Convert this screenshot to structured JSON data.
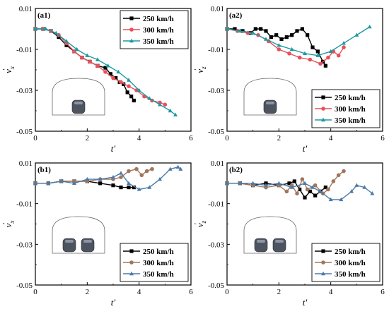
{
  "chart_data": [
    {
      "type": "line",
      "panel_label": "(a1)",
      "xlabel": "t'",
      "ylabel": "v'x",
      "ylabel_main": "v",
      "ylabel_sub": "x",
      "xlim": [
        0,
        6
      ],
      "ylim": [
        -0.05,
        0.01
      ],
      "x_ticks": [
        "0",
        "2",
        "4",
        "6"
      ],
      "y_ticks": [
        "0.01",
        "-0.01",
        "-0.03",
        "-0.05"
      ],
      "legend_position": "top-right",
      "inset": {
        "trains": 1
      },
      "series": [
        {
          "name": "250 km/h",
          "color": "#000000",
          "marker": "square",
          "x": [
            0,
            0.3,
            0.6,
            0.9,
            1.2,
            1.5,
            1.8,
            2.1,
            2.4,
            2.7,
            2.9,
            3.1,
            3.25,
            3.4,
            3.55,
            3.7,
            3.8
          ],
          "y": [
            0.0,
            0.0,
            -0.001,
            -0.004,
            -0.008,
            -0.011,
            -0.014,
            -0.016,
            -0.018,
            -0.019,
            -0.022,
            -0.024,
            -0.026,
            -0.027,
            -0.031,
            -0.033,
            -0.035
          ]
        },
        {
          "name": "300 km/h",
          "color": "#e8505b",
          "marker": "circle",
          "x": [
            0,
            0.3,
            0.6,
            0.9,
            1.2,
            1.5,
            1.8,
            2.1,
            2.4,
            2.7,
            3.0,
            3.3,
            3.6,
            3.9,
            4.2,
            4.5,
            4.8,
            5.0
          ],
          "y": [
            0.0,
            0.0,
            -0.001,
            -0.003,
            -0.007,
            -0.011,
            -0.014,
            -0.016,
            -0.018,
            -0.021,
            -0.024,
            -0.026,
            -0.028,
            -0.03,
            -0.033,
            -0.035,
            -0.036,
            -0.037
          ]
        },
        {
          "name": "350 km/h",
          "color": "#1a9aa0",
          "marker": "triangle",
          "x": [
            0,
            0.4,
            0.8,
            1.2,
            1.6,
            2.0,
            2.4,
            2.8,
            3.2,
            3.6,
            4.0,
            4.4,
            4.8,
            5.2,
            5.4
          ],
          "y": [
            0.0,
            0.0,
            -0.002,
            -0.006,
            -0.01,
            -0.013,
            -0.015,
            -0.018,
            -0.021,
            -0.025,
            -0.03,
            -0.034,
            -0.037,
            -0.04,
            -0.042
          ]
        }
      ]
    },
    {
      "type": "line",
      "panel_label": "(a2)",
      "xlabel": "t'",
      "ylabel": "v'z",
      "ylabel_main": "v",
      "ylabel_sub": "z",
      "xlim": [
        0,
        6
      ],
      "ylim": [
        -0.05,
        0.01
      ],
      "x_ticks": [
        "0",
        "2",
        "4",
        "6"
      ],
      "y_ticks": [
        "0.01",
        "-0.01",
        "-0.03",
        "-0.05"
      ],
      "legend_position": "bottom-right",
      "inset": {
        "trains": 1
      },
      "series": [
        {
          "name": "250 km/h",
          "color": "#000000",
          "marker": "square",
          "x": [
            0,
            0.3,
            0.6,
            0.9,
            1.1,
            1.3,
            1.5,
            1.7,
            1.9,
            2.1,
            2.3,
            2.5,
            2.7,
            2.9,
            3.1,
            3.3,
            3.5,
            3.7,
            3.8
          ],
          "y": [
            0.0,
            0.0,
            -0.001,
            -0.002,
            0.0,
            0.0,
            -0.001,
            -0.004,
            -0.003,
            -0.005,
            -0.004,
            -0.003,
            -0.001,
            0.0,
            -0.003,
            -0.009,
            -0.011,
            -0.016,
            -0.018
          ]
        },
        {
          "name": "300 km/h",
          "color": "#e8505b",
          "marker": "circle",
          "x": [
            0,
            0.4,
            0.8,
            1.2,
            1.6,
            2.0,
            2.4,
            2.8,
            3.2,
            3.6,
            3.9,
            4.1,
            4.3,
            4.5
          ],
          "y": [
            0.0,
            -0.001,
            -0.002,
            -0.003,
            -0.006,
            -0.01,
            -0.012,
            -0.014,
            -0.015,
            -0.017,
            -0.014,
            -0.011,
            -0.013,
            -0.009
          ]
        },
        {
          "name": "350 km/h",
          "color": "#1a9aa0",
          "marker": "triangle",
          "x": [
            0,
            0.5,
            1.0,
            1.5,
            2.0,
            2.5,
            3.0,
            3.5,
            4.0,
            4.5,
            5.0,
            5.5
          ],
          "y": [
            0.0,
            -0.001,
            -0.002,
            -0.005,
            -0.008,
            -0.01,
            -0.012,
            -0.013,
            -0.011,
            -0.007,
            -0.003,
            0.001
          ]
        }
      ]
    },
    {
      "type": "line",
      "panel_label": "(b1)",
      "xlabel": "t'",
      "ylabel": "v'x",
      "ylabel_main": "v",
      "ylabel_sub": "x",
      "xlim": [
        0,
        6
      ],
      "ylim": [
        -0.05,
        0.01
      ],
      "x_ticks": [
        "0",
        "2",
        "4",
        "6"
      ],
      "y_ticks": [
        "0.01",
        "-0.01",
        "-0.03",
        "-0.05"
      ],
      "legend_position": "bottom-right",
      "inset": {
        "trains": 2
      },
      "series": [
        {
          "name": "250 km/h",
          "color": "#000000",
          "marker": "square",
          "x": [
            0,
            0.5,
            1.0,
            1.5,
            2.0,
            2.5,
            3.0,
            3.3,
            3.6,
            3.8
          ],
          "y": [
            0.0,
            0.0,
            0.001,
            0.001,
            0.001,
            0.0,
            -0.001,
            -0.002,
            -0.002,
            -0.002
          ]
        },
        {
          "name": "300 km/h",
          "color": "#a0765e",
          "marker": "circle",
          "x": [
            0,
            0.5,
            1.0,
            1.5,
            2.0,
            2.5,
            3.0,
            3.3,
            3.6,
            3.9,
            4.1,
            4.3,
            4.5
          ],
          "y": [
            0.0,
            0.0,
            0.001,
            0.001,
            0.001,
            0.002,
            0.002,
            0.003,
            0.006,
            0.007,
            0.004,
            0.006,
            0.007
          ]
        },
        {
          "name": "350 km/h",
          "color": "#4a7aa8",
          "marker": "triangle",
          "x": [
            0,
            0.5,
            1.0,
            1.5,
            2.0,
            2.5,
            3.0,
            3.3,
            3.6,
            4.0,
            4.4,
            4.8,
            5.2,
            5.5,
            5.6
          ],
          "y": [
            0.0,
            0.0,
            0.001,
            0.0,
            0.002,
            0.002,
            0.003,
            0.005,
            0.0,
            -0.003,
            -0.002,
            0.002,
            0.007,
            0.008,
            0.007
          ]
        }
      ]
    },
    {
      "type": "line",
      "panel_label": "(b2)",
      "xlabel": "t'",
      "ylabel": "v'z",
      "ylabel_main": "v",
      "ylabel_sub": "z",
      "xlim": [
        0,
        6
      ],
      "ylim": [
        -0.05,
        0.01
      ],
      "x_ticks": [
        "0",
        "2",
        "4",
        "6"
      ],
      "y_ticks": [
        "0.01",
        "-0.01",
        "-0.03",
        "-0.05"
      ],
      "legend_position": "bottom-right",
      "inset": {
        "trains": 2
      },
      "series": [
        {
          "name": "250 km/h",
          "color": "#000000",
          "marker": "square",
          "x": [
            0,
            0.5,
            1.0,
            1.5,
            2.0,
            2.4,
            2.6,
            2.8,
            3.0,
            3.2,
            3.4,
            3.6,
            3.8
          ],
          "y": [
            0.0,
            0.0,
            -0.001,
            0.0,
            -0.001,
            0.0,
            0.001,
            -0.003,
            -0.007,
            -0.004,
            -0.006,
            -0.004,
            -0.002
          ]
        },
        {
          "name": "300 km/h",
          "color": "#a0765e",
          "marker": "circle",
          "x": [
            0,
            0.5,
            1.0,
            1.5,
            2.0,
            2.3,
            2.5,
            2.7,
            2.9,
            3.1,
            3.4,
            3.7,
            3.9,
            4.1,
            4.3,
            4.5
          ],
          "y": [
            0.0,
            0.0,
            -0.001,
            -0.002,
            -0.001,
            -0.004,
            -0.001,
            -0.005,
            0.002,
            -0.003,
            -0.001,
            -0.005,
            -0.003,
            0.001,
            0.004,
            0.006
          ]
        },
        {
          "name": "350 km/h",
          "color": "#4a7aa8",
          "marker": "triangle",
          "x": [
            0,
            0.5,
            1.0,
            1.5,
            2.0,
            2.5,
            3.0,
            3.3,
            3.6,
            4.0,
            4.4,
            4.8,
            5.0,
            5.3,
            5.6
          ],
          "y": [
            0.0,
            0.0,
            0.0,
            -0.001,
            0.0,
            -0.002,
            0.0,
            -0.002,
            -0.004,
            -0.008,
            -0.008,
            -0.004,
            -0.001,
            -0.002,
            -0.005
          ]
        }
      ]
    }
  ]
}
